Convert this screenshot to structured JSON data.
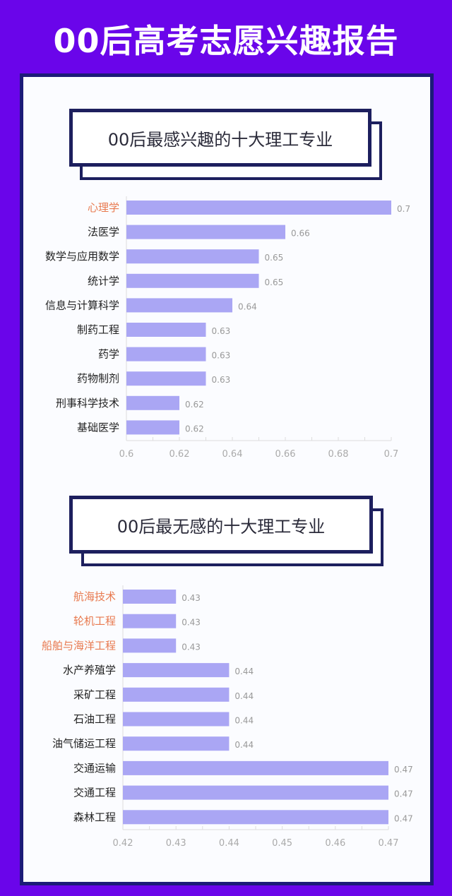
{
  "title": "00后高考志愿兴趣报告",
  "colors": {
    "background": "#6a05ea",
    "bar": "#aaa6f4",
    "highlight_label": "#e8794e",
    "frame": "#1d1f5e"
  },
  "chart_data": [
    {
      "type": "bar",
      "orientation": "horizontal",
      "title": "00后最感兴趣的十大理工专业",
      "categories": [
        "心理学",
        "法医学",
        "数学与应用数学",
        "统计学",
        "信息与计算科学",
        "制药工程",
        "药学",
        "药物制剂",
        "刑事科学技术",
        "基础医学"
      ],
      "values": [
        0.7,
        0.66,
        0.65,
        0.65,
        0.64,
        0.63,
        0.63,
        0.63,
        0.62,
        0.62
      ],
      "highlighted": [
        "心理学"
      ],
      "xlim": [
        0.6,
        0.7
      ],
      "xticks": [
        "0.6",
        "0.62",
        "0.64",
        "0.66",
        "0.68",
        "0.7"
      ],
      "grid": false
    },
    {
      "type": "bar",
      "orientation": "horizontal",
      "title": "00后最无感的十大理工专业",
      "categories": [
        "航海技术",
        "轮机工程",
        "船舶与海洋工程",
        "水产养殖学",
        "采矿工程",
        "石油工程",
        "油气储运工程",
        "交通运输",
        "交通工程",
        "森林工程"
      ],
      "values": [
        0.43,
        0.43,
        0.43,
        0.44,
        0.44,
        0.44,
        0.44,
        0.47,
        0.47,
        0.47
      ],
      "highlighted": [
        "航海技术",
        "轮机工程",
        "船舶与海洋工程"
      ],
      "xlim": [
        0.42,
        0.47
      ],
      "xticks": [
        "0.42",
        "0.43",
        "0.44",
        "0.45",
        "0.46",
        "0.47"
      ],
      "grid": false
    }
  ]
}
